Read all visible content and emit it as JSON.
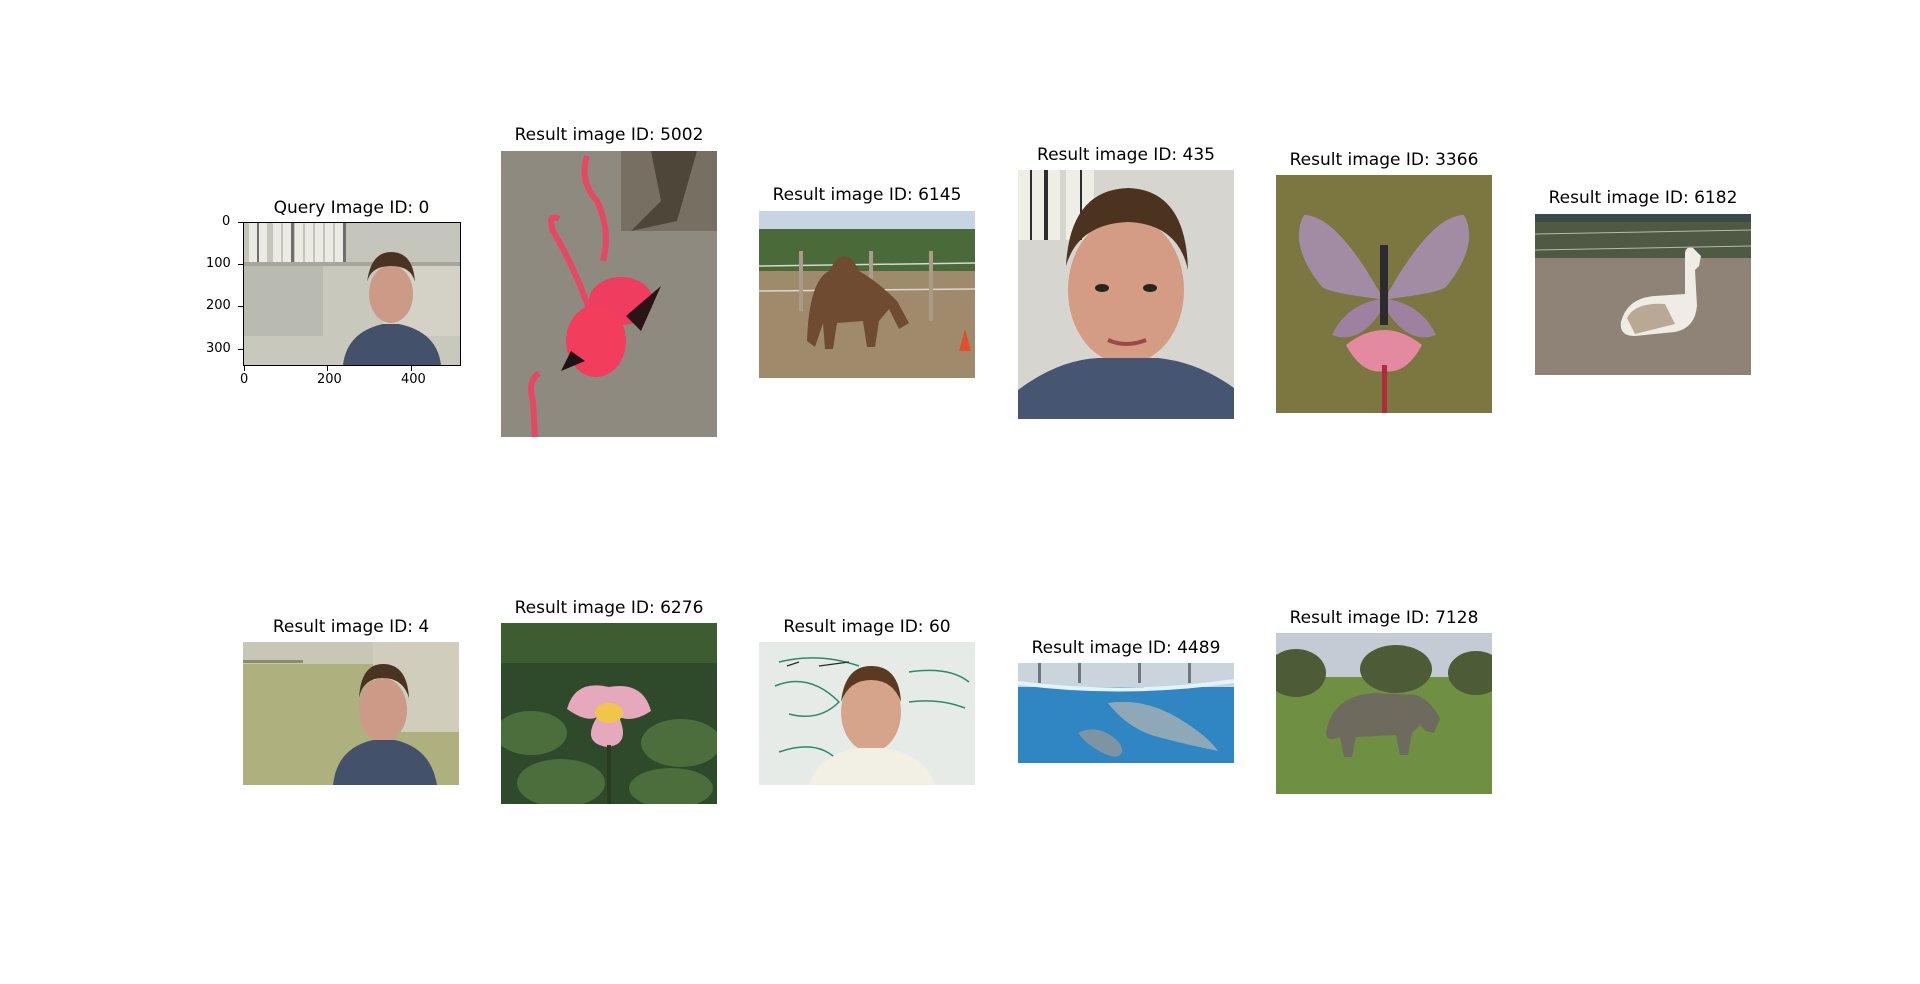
{
  "query": {
    "title": "Query Image ID: 0",
    "x_ticks": [
      "0",
      "200",
      "400"
    ],
    "y_ticks": [
      "0",
      "100",
      "200",
      "300"
    ]
  },
  "results": [
    {
      "title": "Result image ID: 5002"
    },
    {
      "title": "Result image ID: 6145"
    },
    {
      "title": "Result image ID: 435"
    },
    {
      "title": "Result image ID: 3366"
    },
    {
      "title": "Result image ID: 6182"
    },
    {
      "title": "Result image ID: 4"
    },
    {
      "title": "Result image ID: 6276"
    },
    {
      "title": "Result image ID: 60"
    },
    {
      "title": "Result image ID: 4489"
    },
    {
      "title": "Result image ID: 7128"
    }
  ]
}
